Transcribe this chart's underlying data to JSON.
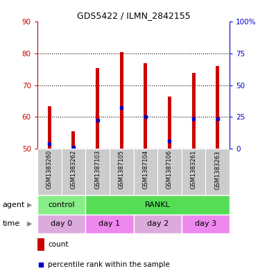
{
  "title": "GDS5422 / ILMN_2842155",
  "samples": [
    "GSM1383260",
    "GSM1383262",
    "GSM1387103",
    "GSM1387105",
    "GSM1387104",
    "GSM1387106",
    "GSM1383261",
    "GSM1383263"
  ],
  "count_values": [
    63.5,
    55.5,
    75.5,
    80.5,
    77.0,
    66.5,
    74.0,
    76.0
  ],
  "percentile_values": [
    51.5,
    50.5,
    59.0,
    63.0,
    60.0,
    52.5,
    59.5,
    59.5
  ],
  "bar_bottom": 50,
  "ylim": [
    50,
    90
  ],
  "ylim_right": [
    0,
    100
  ],
  "yticks_left": [
    50,
    60,
    70,
    80,
    90
  ],
  "yticks_right": [
    0,
    25,
    50,
    75,
    100
  ],
  "bar_color": "#cc0000",
  "percentile_color": "#0000cc",
  "agent_groups": [
    {
      "label": "control",
      "start": 0,
      "end": 2,
      "color": "#88ee88"
    },
    {
      "label": "RANKL",
      "start": 2,
      "end": 8,
      "color": "#55dd55"
    }
  ],
  "time_groups": [
    {
      "label": "day 0",
      "start": 0,
      "end": 2,
      "color": "#ddaadd"
    },
    {
      "label": "day 1",
      "start": 2,
      "end": 4,
      "color": "#ee88ee"
    },
    {
      "label": "day 2",
      "start": 4,
      "end": 6,
      "color": "#ddaadd"
    },
    {
      "label": "day 3",
      "start": 6,
      "end": 8,
      "color": "#ee88ee"
    }
  ],
  "agent_label": "agent",
  "time_label": "time",
  "legend_count_label": "count",
  "legend_pct_label": "percentile rank within the sample",
  "left_axis_color": "#cc0000",
  "right_axis_color": "#0000cc",
  "sample_bg_color": "#cccccc",
  "bar_width": 0.15
}
